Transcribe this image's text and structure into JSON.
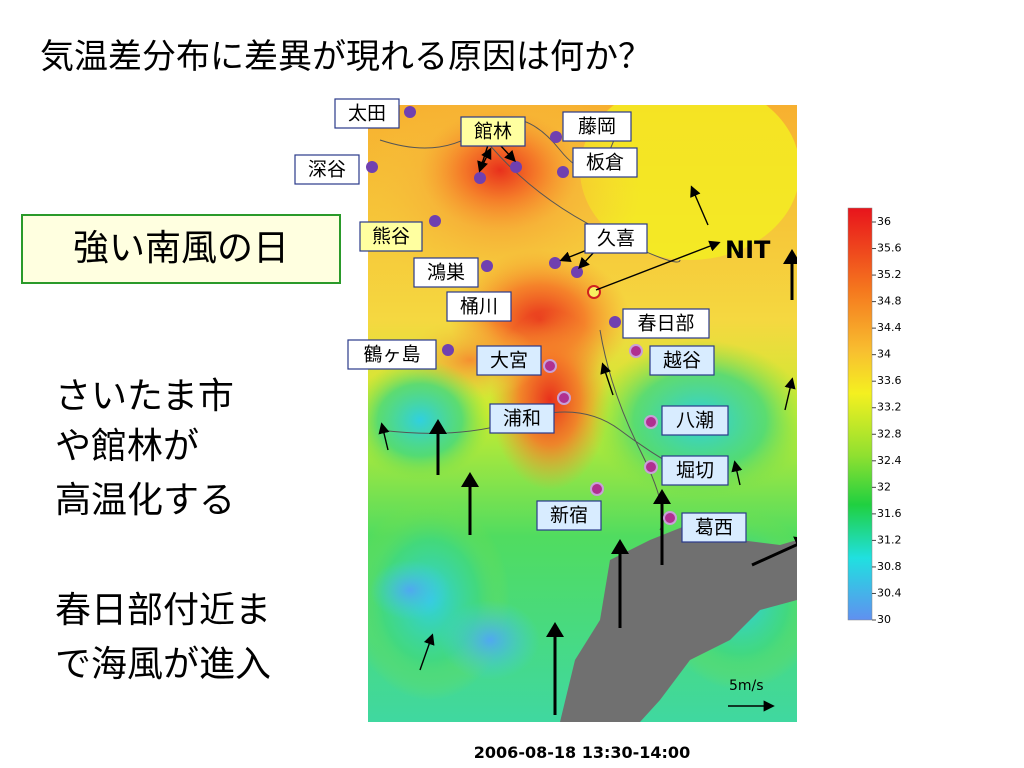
{
  "header": {
    "title": "気温差分布に差異が現れる原因は何か？"
  },
  "callout": "強い南風の日",
  "body": [
    "さいたま市",
    "や館林が",
    "高温化する",
    "春日部付近ま",
    "で海風が進入"
  ],
  "places": [
    "太田",
    "館林",
    "藤岡",
    "深谷",
    "板倉",
    "熊谷",
    "久喜",
    "鴻巣",
    "桶川",
    "春日部",
    "鶴ヶ島",
    "大宮",
    "越谷",
    "浦和",
    "八潮",
    "堀切",
    "新宿",
    "葛西"
  ],
  "site": "NIT",
  "scale": "5m/s",
  "colorbar": {
    "ticks": [
      36,
      35.6,
      35.2,
      34.8,
      34.4,
      34,
      33.6,
      33.2,
      32.8,
      32.4,
      32,
      31.6,
      31.2,
      30.8,
      30.4,
      30
    ]
  },
  "timestamp": "2006-08-18 13:30-14:00"
}
